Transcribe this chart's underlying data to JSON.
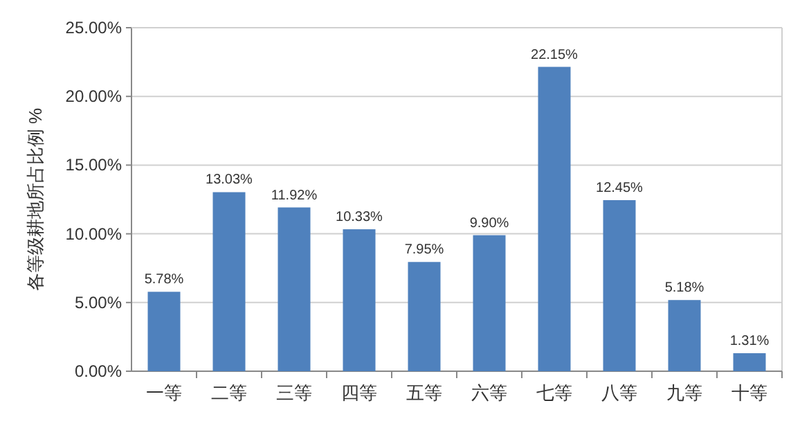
{
  "chart_data": {
    "type": "bar",
    "ylabel": "各等级耕地所占比例 %",
    "categories": [
      "一等",
      "二等",
      "三等",
      "四等",
      "五等",
      "六等",
      "七等",
      "八等",
      "九等",
      "十等"
    ],
    "values": [
      5.78,
      13.03,
      11.92,
      10.33,
      7.95,
      9.9,
      22.15,
      12.45,
      5.18,
      1.31
    ],
    "value_labels": [
      "5.78%",
      "13.03%",
      "11.92%",
      "10.33%",
      "7.95%",
      "9.90%",
      "22.15%",
      "12.45%",
      "5.18%",
      "1.31%"
    ],
    "color": "#4f81bd",
    "ylim": [
      0,
      25
    ],
    "yticks": [
      {
        "value": 0,
        "label": "0.00%"
      },
      {
        "value": 5,
        "label": "5.00%"
      },
      {
        "value": 10,
        "label": "10.00%"
      },
      {
        "value": 15,
        "label": "15.00%"
      },
      {
        "value": 20,
        "label": "20.00%"
      },
      {
        "value": 25,
        "label": "25.00%"
      }
    ],
    "grid": "y"
  }
}
